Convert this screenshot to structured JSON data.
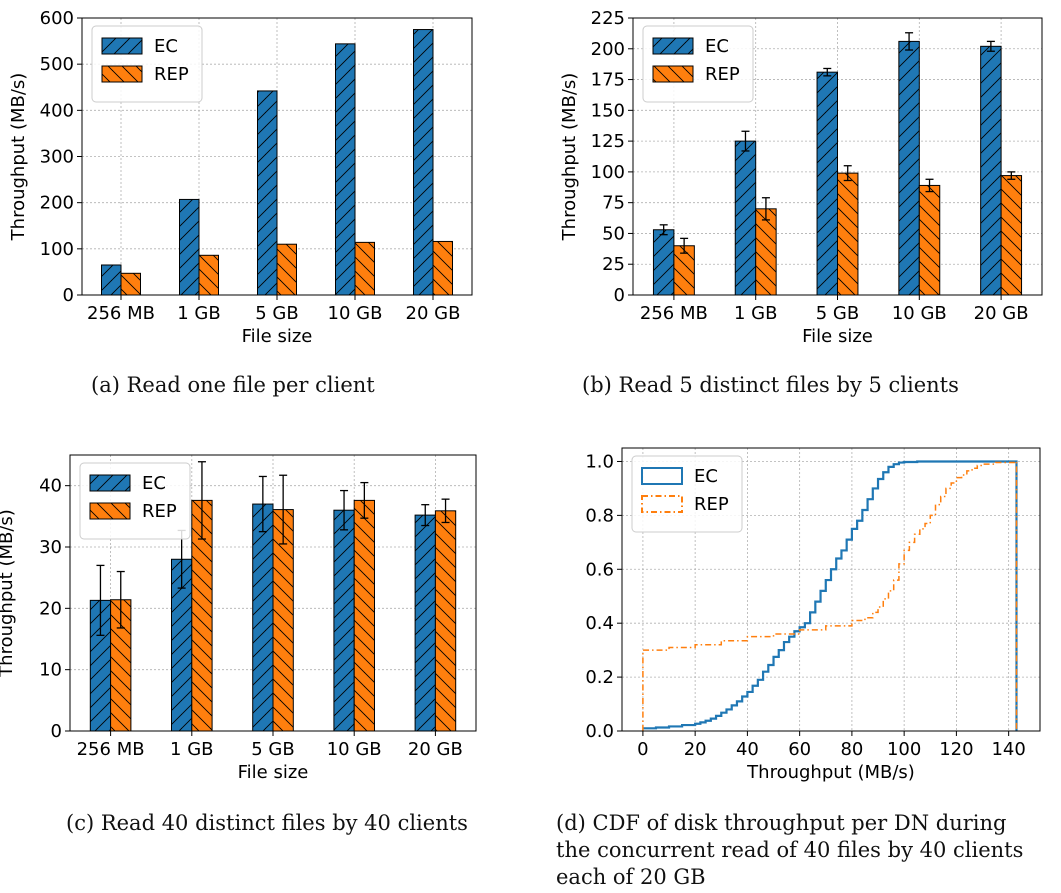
{
  "colors": {
    "ec": "#1f77b4",
    "rep": "#ff7f0e",
    "grid": "#b0b0b0"
  },
  "captions": {
    "a": "(a) Read one file per client",
    "b": "(b) Read 5 distinct files by 5 clients",
    "c": "(c) Read 40 distinct files by 40 clients",
    "d_line1": "(d) CDF of disk throughput per DN during",
    "d_line2": "the concurrent read of 40 files by 40 clients",
    "d_line3": "each of 20 GB"
  },
  "chart_data": [
    {
      "id": "a",
      "type": "bar",
      "title": "",
      "xlabel": "File size",
      "ylabel": "Throughput (MB/s)",
      "categories": [
        "256 MB",
        "1 GB",
        "5 GB",
        "10 GB",
        "20 GB"
      ],
      "ylim": [
        0,
        600
      ],
      "yticks": [
        0,
        100,
        200,
        300,
        400,
        500,
        600
      ],
      "grid": true,
      "legend": "top-left",
      "series": [
        {
          "name": "EC",
          "color": "#1f77b4",
          "hatch": "/",
          "values": [
            65,
            207,
            442,
            544,
            575
          ]
        },
        {
          "name": "REP",
          "color": "#ff7f0e",
          "hatch": "\\",
          "values": [
            47,
            86,
            110,
            114,
            116
          ]
        }
      ]
    },
    {
      "id": "b",
      "type": "bar",
      "title": "",
      "xlabel": "File size",
      "ylabel": "Throughput (MB/s)",
      "categories": [
        "256 MB",
        "1 GB",
        "5 GB",
        "10 GB",
        "20 GB"
      ],
      "ylim": [
        0,
        225
      ],
      "yticks": [
        0,
        25,
        50,
        75,
        100,
        125,
        150,
        175,
        200,
        225
      ],
      "grid": true,
      "legend": "top-left",
      "series": [
        {
          "name": "EC",
          "color": "#1f77b4",
          "hatch": "/",
          "values": [
            53,
            125,
            181,
            206,
            202
          ],
          "errors": [
            4,
            8,
            3,
            7,
            4
          ]
        },
        {
          "name": "REP",
          "color": "#ff7f0e",
          "hatch": "\\",
          "values": [
            40,
            70,
            99,
            89,
            97
          ],
          "errors": [
            6,
            9,
            6,
            5,
            3
          ]
        }
      ]
    },
    {
      "id": "c",
      "type": "bar",
      "title": "",
      "xlabel": "File size",
      "ylabel": "Throughput (MB/s)",
      "categories": [
        "256 MB",
        "1 GB",
        "5 GB",
        "10 GB",
        "20 GB"
      ],
      "ylim": [
        0,
        45
      ],
      "yticks": [
        0,
        10,
        20,
        30,
        40
      ],
      "grid": true,
      "legend": "top-left",
      "series": [
        {
          "name": "EC",
          "color": "#1f77b4",
          "hatch": "/",
          "values": [
            21.3,
            28.0,
            37.0,
            36.0,
            35.2
          ],
          "errors": [
            5.7,
            4.7,
            4.5,
            3.2,
            1.7
          ]
        },
        {
          "name": "REP",
          "color": "#ff7f0e",
          "hatch": "\\",
          "values": [
            21.4,
            37.6,
            36.1,
            37.6,
            35.9
          ],
          "errors": [
            4.6,
            6.3,
            5.6,
            2.9,
            1.9
          ]
        }
      ]
    },
    {
      "id": "d",
      "type": "line",
      "title": "",
      "xlabel": "Throughput (MB/s)",
      "ylabel": "",
      "xlim": [
        -8,
        152
      ],
      "ylim": [
        0,
        1.05
      ],
      "xticks": [
        0,
        20,
        40,
        60,
        80,
        100,
        120,
        140
      ],
      "yticks": [
        0.0,
        0.2,
        0.4,
        0.6,
        0.8,
        1.0
      ],
      "ytick_labels": [
        "0.0",
        "0.2",
        "0.4",
        "0.6",
        "0.8",
        "1.0"
      ],
      "grid": true,
      "legend": "top-left",
      "series": [
        {
          "name": "EC",
          "color": "#1f77b4",
          "style": "solid-step",
          "x": [
            0,
            5,
            10,
            15,
            20,
            22,
            24,
            26,
            28,
            30,
            32,
            34,
            36,
            38,
            40,
            42,
            44,
            46,
            48,
            50,
            52,
            54,
            56,
            58,
            60,
            62,
            64,
            66,
            68,
            70,
            72,
            74,
            76,
            78,
            80,
            82,
            84,
            86,
            88,
            90,
            92,
            94,
            96,
            98,
            100,
            105,
            110,
            120,
            130,
            143,
            143
          ],
          "y": [
            0.01,
            0.013,
            0.017,
            0.022,
            0.027,
            0.032,
            0.038,
            0.046,
            0.056,
            0.068,
            0.08,
            0.095,
            0.11,
            0.128,
            0.145,
            0.168,
            0.19,
            0.22,
            0.245,
            0.275,
            0.3,
            0.33,
            0.35,
            0.37,
            0.385,
            0.4,
            0.44,
            0.48,
            0.52,
            0.56,
            0.6,
            0.64,
            0.67,
            0.71,
            0.75,
            0.78,
            0.82,
            0.86,
            0.9,
            0.935,
            0.96,
            0.98,
            0.99,
            0.996,
            0.998,
            1.0,
            1.0,
            1.0,
            1.0,
            1.0,
            0.0
          ]
        },
        {
          "name": "REP",
          "color": "#ff7f0e",
          "style": "dashdot-step",
          "x": [
            0,
            0,
            10,
            20,
            30,
            40,
            50,
            60,
            70,
            80,
            85,
            88,
            90,
            92,
            94,
            96,
            98,
            100,
            102,
            104,
            106,
            108,
            110,
            112,
            114,
            116,
            118,
            120,
            122,
            124,
            126,
            128,
            130,
            135,
            143,
            143
          ],
          "y": [
            0.0,
            0.3,
            0.31,
            0.32,
            0.335,
            0.35,
            0.36,
            0.375,
            0.39,
            0.41,
            0.42,
            0.44,
            0.46,
            0.49,
            0.52,
            0.56,
            0.62,
            0.67,
            0.7,
            0.73,
            0.75,
            0.77,
            0.8,
            0.84,
            0.87,
            0.9,
            0.92,
            0.94,
            0.95,
            0.965,
            0.975,
            0.985,
            0.99,
            0.996,
            1.0,
            0.0
          ]
        }
      ]
    }
  ]
}
